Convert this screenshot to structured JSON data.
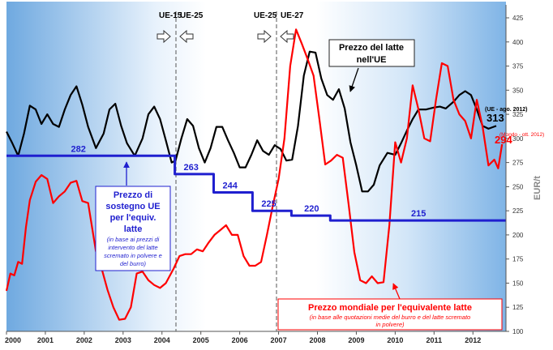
{
  "chart_data": {
    "type": "line",
    "ylabel": "EUR/t",
    "ylim": [
      100,
      425
    ],
    "y_ticks": [
      100,
      125,
      150,
      175,
      200,
      225,
      250,
      275,
      300,
      325,
      350,
      375,
      400,
      425
    ],
    "x_ticks": [
      "2000",
      "2001",
      "2002",
      "2003",
      "2004",
      "2005",
      "2006",
      "2007",
      "2008",
      "2009",
      "2010",
      "2011",
      "2012"
    ],
    "xlim": [
      2000.0,
      2012.85
    ],
    "grid": false,
    "enlargements": [
      {
        "label_left": "UE-15",
        "label_right": "UE-25",
        "x": 2004.33
      },
      {
        "label_left": "UE-25",
        "label_right": "UE-27",
        "x": 2007.0
      }
    ],
    "series": [
      {
        "name": "Prezzo del latte nell'UE",
        "color": "#000000",
        "end_label": "313",
        "end_note": "(UE - ago. 2012)",
        "points": [
          [
            2000.0,
            307
          ],
          [
            2000.15,
            295
          ],
          [
            2000.3,
            282
          ],
          [
            2000.45,
            305
          ],
          [
            2000.6,
            334
          ],
          [
            2000.75,
            330
          ],
          [
            2000.9,
            315
          ],
          [
            2001.05,
            325
          ],
          [
            2001.2,
            315
          ],
          [
            2001.35,
            312
          ],
          [
            2001.5,
            330
          ],
          [
            2001.65,
            345
          ],
          [
            2001.8,
            354
          ],
          [
            2001.95,
            335
          ],
          [
            2002.1,
            312
          ],
          [
            2002.3,
            290
          ],
          [
            2002.5,
            305
          ],
          [
            2002.65,
            330
          ],
          [
            2002.8,
            336
          ],
          [
            2002.95,
            313
          ],
          [
            2003.1,
            295
          ],
          [
            2003.3,
            282
          ],
          [
            2003.5,
            300
          ],
          [
            2003.65,
            325
          ],
          [
            2003.8,
            333
          ],
          [
            2003.95,
            320
          ],
          [
            2004.1,
            298
          ],
          [
            2004.25,
            275
          ],
          [
            2004.35,
            277
          ],
          [
            2004.5,
            300
          ],
          [
            2004.65,
            320
          ],
          [
            2004.8,
            313
          ],
          [
            2004.95,
            290
          ],
          [
            2005.1,
            275
          ],
          [
            2005.25,
            290
          ],
          [
            2005.4,
            312
          ],
          [
            2005.55,
            312
          ],
          [
            2005.7,
            298
          ],
          [
            2005.85,
            285
          ],
          [
            2006.0,
            270
          ],
          [
            2006.15,
            270
          ],
          [
            2006.3,
            283
          ],
          [
            2006.45,
            298
          ],
          [
            2006.6,
            287
          ],
          [
            2006.75,
            283
          ],
          [
            2006.9,
            293
          ],
          [
            2007.05,
            289
          ],
          [
            2007.2,
            277
          ],
          [
            2007.35,
            278
          ],
          [
            2007.5,
            313
          ],
          [
            2007.65,
            365
          ],
          [
            2007.8,
            390
          ],
          [
            2007.95,
            389
          ],
          [
            2008.1,
            362
          ],
          [
            2008.25,
            345
          ],
          [
            2008.4,
            340
          ],
          [
            2008.55,
            351
          ],
          [
            2008.7,
            331
          ],
          [
            2008.85,
            296
          ],
          [
            2009.0,
            272
          ],
          [
            2009.15,
            245
          ],
          [
            2009.3,
            245
          ],
          [
            2009.45,
            252
          ],
          [
            2009.6,
            272
          ],
          [
            2009.8,
            285
          ],
          [
            2010.0,
            283
          ],
          [
            2010.15,
            295
          ],
          [
            2010.3,
            308
          ],
          [
            2010.45,
            320
          ],
          [
            2010.6,
            330
          ],
          [
            2010.8,
            330
          ],
          [
            2011.0,
            332
          ],
          [
            2011.15,
            333
          ],
          [
            2011.3,
            331
          ],
          [
            2011.5,
            338
          ],
          [
            2011.65,
            345
          ],
          [
            2011.8,
            349
          ],
          [
            2011.95,
            345
          ],
          [
            2012.1,
            330
          ],
          [
            2012.25,
            313
          ],
          [
            2012.4,
            310
          ],
          [
            2012.6,
            313
          ]
        ]
      },
      {
        "name": "Prezzo mondiale per l'equivalente latte",
        "subtitle": "(in base alle quotazioni medie del burro e del latte scremato in polvere)",
        "color": "#ff0000",
        "end_label": "294",
        "end_note": "(Mondo - ott. 2012)",
        "points": [
          [
            2000.0,
            142
          ],
          [
            2000.1,
            160
          ],
          [
            2000.2,
            158
          ],
          [
            2000.3,
            172
          ],
          [
            2000.4,
            170
          ],
          [
            2000.5,
            208
          ],
          [
            2000.6,
            236
          ],
          [
            2000.75,
            255
          ],
          [
            2000.9,
            262
          ],
          [
            2001.05,
            258
          ],
          [
            2001.2,
            233
          ],
          [
            2001.35,
            240
          ],
          [
            2001.5,
            245
          ],
          [
            2001.65,
            254
          ],
          [
            2001.8,
            256
          ],
          [
            2001.95,
            235
          ],
          [
            2002.1,
            233
          ],
          [
            2002.3,
            183
          ],
          [
            2002.45,
            165
          ],
          [
            2002.6,
            143
          ],
          [
            2002.75,
            125
          ],
          [
            2002.9,
            112
          ],
          [
            2003.05,
            113
          ],
          [
            2003.2,
            125
          ],
          [
            2003.35,
            160
          ],
          [
            2003.5,
            162
          ],
          [
            2003.65,
            153
          ],
          [
            2003.8,
            148
          ],
          [
            2003.95,
            145
          ],
          [
            2004.1,
            150
          ],
          [
            2004.3,
            165
          ],
          [
            2004.45,
            178
          ],
          [
            2004.6,
            180
          ],
          [
            2004.75,
            180
          ],
          [
            2004.9,
            185
          ],
          [
            2005.05,
            183
          ],
          [
            2005.2,
            192
          ],
          [
            2005.35,
            200
          ],
          [
            2005.5,
            205
          ],
          [
            2005.65,
            210
          ],
          [
            2005.8,
            200
          ],
          [
            2005.95,
            200
          ],
          [
            2006.1,
            178
          ],
          [
            2006.25,
            168
          ],
          [
            2006.4,
            168
          ],
          [
            2006.55,
            172
          ],
          [
            2006.7,
            200
          ],
          [
            2006.85,
            230
          ],
          [
            2007.0,
            258
          ],
          [
            2007.15,
            300
          ],
          [
            2007.3,
            375
          ],
          [
            2007.45,
            413
          ],
          [
            2007.6,
            398
          ],
          [
            2007.75,
            382
          ],
          [
            2007.9,
            365
          ],
          [
            2008.05,
            320
          ],
          [
            2008.2,
            273
          ],
          [
            2008.35,
            277
          ],
          [
            2008.5,
            283
          ],
          [
            2008.65,
            280
          ],
          [
            2008.8,
            232
          ],
          [
            2008.95,
            182
          ],
          [
            2009.1,
            153
          ],
          [
            2009.25,
            150
          ],
          [
            2009.4,
            157
          ],
          [
            2009.55,
            150
          ],
          [
            2009.7,
            151
          ],
          [
            2009.85,
            210
          ],
          [
            2010.0,
            296
          ],
          [
            2010.15,
            275
          ],
          [
            2010.3,
            300
          ],
          [
            2010.45,
            355
          ],
          [
            2010.6,
            330
          ],
          [
            2010.75,
            300
          ],
          [
            2010.9,
            297
          ],
          [
            2011.05,
            340
          ],
          [
            2011.2,
            378
          ],
          [
            2011.35,
            375
          ],
          [
            2011.5,
            340
          ],
          [
            2011.65,
            325
          ],
          [
            2011.8,
            318
          ],
          [
            2011.95,
            300
          ],
          [
            2012.1,
            340
          ],
          [
            2012.25,
            312
          ],
          [
            2012.4,
            272
          ],
          [
            2012.55,
            278
          ],
          [
            2012.65,
            269
          ],
          [
            2012.75,
            294
          ]
        ]
      },
      {
        "name": "Prezzo di sostegno UE per l'equiv. latte",
        "color": "#1f1fcf",
        "step": true,
        "points": [
          [
            2000.0,
            282
          ],
          [
            2004.33,
            282
          ],
          [
            2004.33,
            263
          ],
          [
            2005.33,
            263
          ],
          [
            2005.33,
            244
          ],
          [
            2006.33,
            244
          ],
          [
            2006.33,
            225
          ],
          [
            2007.33,
            225
          ],
          [
            2007.33,
            220
          ],
          [
            2008.33,
            220
          ],
          [
            2008.33,
            215
          ],
          [
            2012.85,
            215
          ]
        ],
        "step_labels": [
          {
            "x": 2001.85,
            "y": 282,
            "text": "282"
          },
          {
            "x": 2004.75,
            "y": 263,
            "text": "263"
          },
          {
            "x": 2005.75,
            "y": 244,
            "text": "244"
          },
          {
            "x": 2006.75,
            "y": 225,
            "text": "225"
          },
          {
            "x": 2007.85,
            "y": 220,
            "text": "220"
          },
          {
            "x": 2010.6,
            "y": 215,
            "text": "215"
          }
        ]
      }
    ]
  },
  "callouts": {
    "eu_price": {
      "line1": "Prezzo del latte",
      "line2": "nell'UE"
    },
    "support": {
      "lines": [
        "Prezzo di",
        "sostegno UE",
        "per l'equiv.",
        "latte"
      ],
      "note_lines": [
        "(in base ai prezzi di",
        "intervento del latte",
        "scremato in polvere e",
        "del burro)"
      ]
    },
    "world": {
      "title": "Prezzo mondiale per l'equivalente latte",
      "note": "(in base alle quotazioni medie del burro e del latte scremato in polvere)"
    }
  },
  "colors": {
    "background_left": "#ffffff",
    "background_right": "#7fb4e6",
    "eu": "#000000",
    "world": "#ff0000",
    "support": "#1f1fcf"
  }
}
